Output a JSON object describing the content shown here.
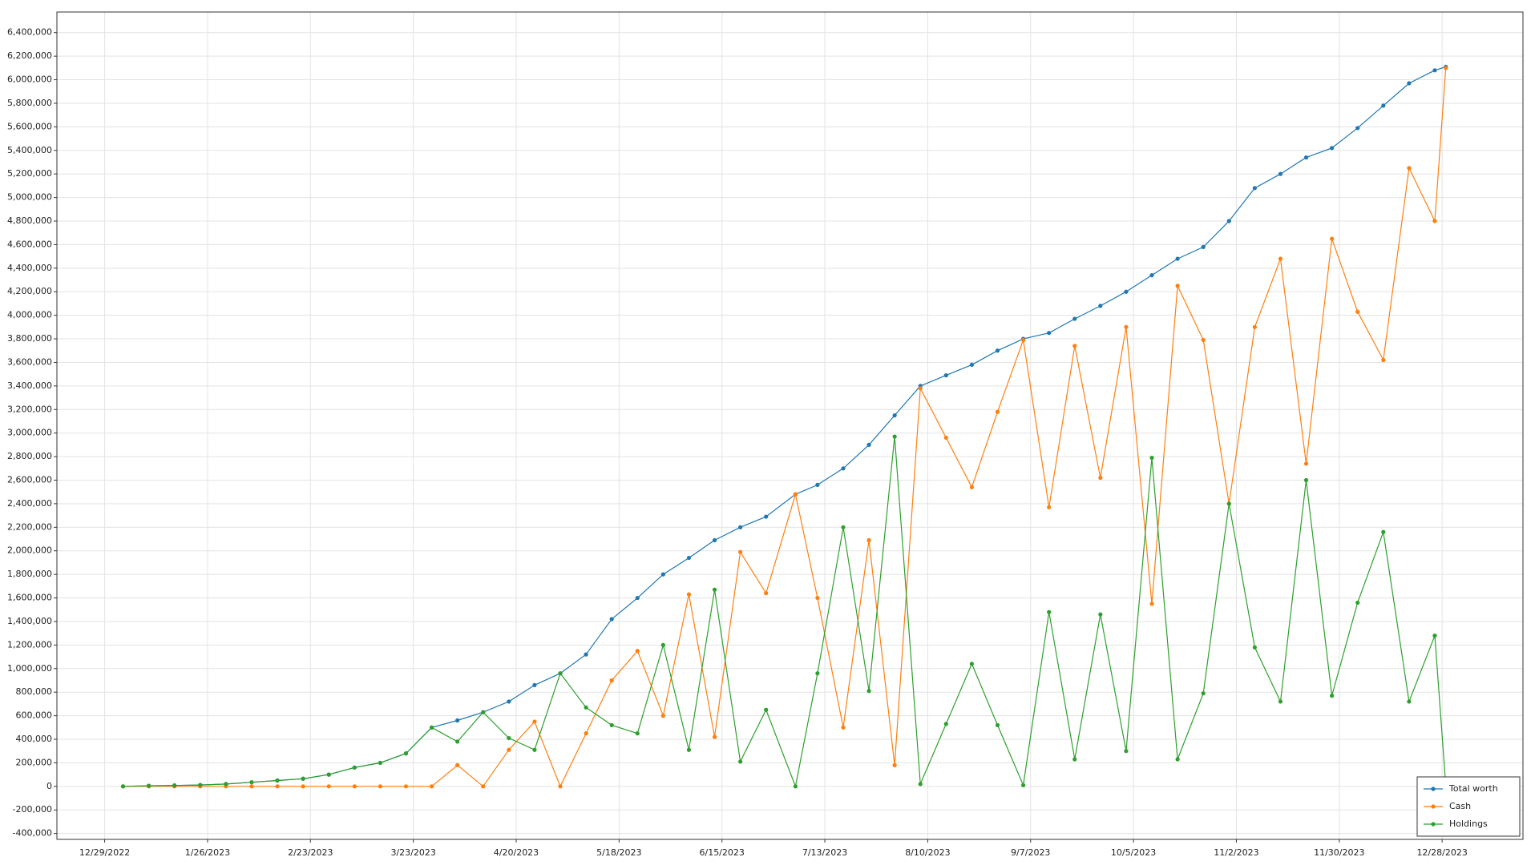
{
  "chart_data": {
    "type": "line",
    "x": [
      "1/3/2023",
      "1/10/2023",
      "1/17/2023",
      "1/24/2023",
      "1/31/2023",
      "2/7/2023",
      "2/14/2023",
      "2/21/2023",
      "2/28/2023",
      "3/7/2023",
      "3/14/2023",
      "3/21/2023",
      "3/28/2023",
      "4/4/2023",
      "4/11/2023",
      "4/18/2023",
      "4/25/2023",
      "5/2/2023",
      "5/9/2023",
      "5/16/2023",
      "5/23/2023",
      "5/30/2023",
      "6/6/2023",
      "6/13/2023",
      "6/20/2023",
      "6/27/2023",
      "7/5/2023",
      "7/11/2023",
      "7/18/2023",
      "7/25/2023",
      "8/1/2023",
      "8/8/2023",
      "8/15/2023",
      "8/22/2023",
      "8/29/2023",
      "9/5/2023",
      "9/12/2023",
      "9/19/2023",
      "9/26/2023",
      "10/3/2023",
      "10/10/2023",
      "10/17/2023",
      "10/24/2023",
      "10/31/2023",
      "11/7/2023",
      "11/14/2023",
      "11/21/2023",
      "11/28/2023",
      "12/5/2023",
      "12/12/2023",
      "12/19/2023",
      "12/26/2023",
      "12/29/2023"
    ],
    "series": [
      {
        "name": "Total worth",
        "color": "#1f77b4",
        "values": [
          0,
          5000,
          8000,
          12000,
          20000,
          35000,
          50000,
          65000,
          100000,
          160000,
          200000,
          280000,
          500000,
          560000,
          630000,
          720000,
          860000,
          960000,
          1120000,
          1420000,
          1600000,
          1800000,
          1940000,
          2090000,
          2200000,
          2290000,
          2480000,
          2560000,
          2700000,
          2900000,
          3150000,
          3400000,
          3490000,
          3580000,
          3700000,
          3800000,
          3850000,
          3970000,
          4080000,
          4200000,
          4340000,
          4480000,
          4580000,
          4800000,
          5080000,
          5200000,
          5340000,
          5420000,
          5590000,
          5780000,
          5970000,
          6080000,
          6110000
        ]
      },
      {
        "name": "Cash",
        "color": "#ff7f0e",
        "values": [
          0,
          0,
          0,
          0,
          0,
          0,
          0,
          0,
          0,
          0,
          0,
          0,
          0,
          180000,
          0,
          310000,
          550000,
          0,
          450000,
          900000,
          1150000,
          600000,
          1630000,
          420000,
          1990000,
          1640000,
          2480000,
          1600000,
          500000,
          2090000,
          180000,
          3380000,
          2960000,
          2540000,
          3180000,
          3790000,
          2370000,
          3740000,
          2620000,
          3900000,
          1550000,
          4250000,
          3790000,
          2400000,
          3900000,
          4480000,
          2740000,
          4650000,
          4030000,
          3620000,
          5250000,
          4800000,
          6100000
        ]
      },
      {
        "name": "Holdings",
        "color": "#2ca02c",
        "values": [
          0,
          5000,
          8000,
          12000,
          20000,
          35000,
          50000,
          65000,
          100000,
          160000,
          200000,
          280000,
          500000,
          380000,
          630000,
          410000,
          310000,
          960000,
          670000,
          520000,
          450000,
          1200000,
          310000,
          1670000,
          210000,
          650000,
          0,
          960000,
          2200000,
          810000,
          2970000,
          20000,
          530000,
          1040000,
          520000,
          10000,
          1480000,
          230000,
          1460000,
          300000,
          2790000,
          230000,
          790000,
          2400000,
          1180000,
          720000,
          2600000,
          770000,
          1560000,
          2160000,
          720000,
          1280000,
          10000
        ]
      }
    ],
    "xlim": [
      "12/16/2022",
      "1/19/2024"
    ],
    "xticks": [
      "12/29/2022",
      "1/26/2023",
      "2/23/2023",
      "3/23/2023",
      "4/20/2023",
      "5/18/2023",
      "6/15/2023",
      "7/13/2023",
      "8/10/2023",
      "9/7/2023",
      "10/5/2023",
      "11/2/2023",
      "11/30/2023",
      "12/28/2023"
    ],
    "ylim": [
      -450000,
      6575000
    ],
    "yticks": [
      {
        "value": -400000,
        "label": "-400,000"
      },
      {
        "value": -200000,
        "label": "-200,000"
      },
      0,
      {
        "value": 200000,
        "label": "200,000"
      },
      {
        "value": 400000,
        "label": "400,000"
      },
      {
        "value": 600000,
        "label": "600,000"
      },
      {
        "value": 800000,
        "label": "800,000"
      },
      {
        "value": 1000000,
        "label": "1,000,000"
      },
      {
        "value": 1200000,
        "label": "1,200,000"
      },
      {
        "value": 1400000,
        "label": "1,400,000"
      },
      {
        "value": 1600000,
        "label": "1,600,000"
      },
      {
        "value": 1800000,
        "label": "1,800,000"
      },
      {
        "value": 2000000,
        "label": "2,000,000"
      },
      {
        "value": 2200000,
        "label": "2,200,000"
      },
      {
        "value": 2400000,
        "label": "2,400,000"
      },
      {
        "value": 2600000,
        "label": "2,600,000"
      },
      {
        "value": 2800000,
        "label": "2,800,000"
      },
      {
        "value": 3000000,
        "label": "3,000,000"
      },
      {
        "value": 3200000,
        "label": "3,200,000"
      },
      {
        "value": 3400000,
        "label": "3,400,000"
      },
      {
        "value": 3600000,
        "label": "3,600,000"
      },
      {
        "value": 3800000,
        "label": "3,800,000"
      },
      {
        "value": 4000000,
        "label": "4,000,000"
      },
      {
        "value": 4200000,
        "label": "4,200,000"
      },
      {
        "value": 4400000,
        "label": "4,400,000"
      },
      {
        "value": 4600000,
        "label": "4,600,000"
      },
      {
        "value": 4800000,
        "label": "4,800,000"
      },
      {
        "value": 5000000,
        "label": "5,000,000"
      },
      {
        "value": 5200000,
        "label": "5,200,000"
      },
      {
        "value": 5400000,
        "label": "5,400,000"
      },
      {
        "value": 5600000,
        "label": "5,600,000"
      },
      {
        "value": 5800000,
        "label": "5,800,000"
      },
      {
        "value": 6000000,
        "label": "6,000,000"
      },
      {
        "value": 6200000,
        "label": "6,200,000"
      },
      {
        "value": 6400000,
        "label": "6,400,000"
      }
    ],
    "grid": true,
    "legend": "lower right"
  }
}
